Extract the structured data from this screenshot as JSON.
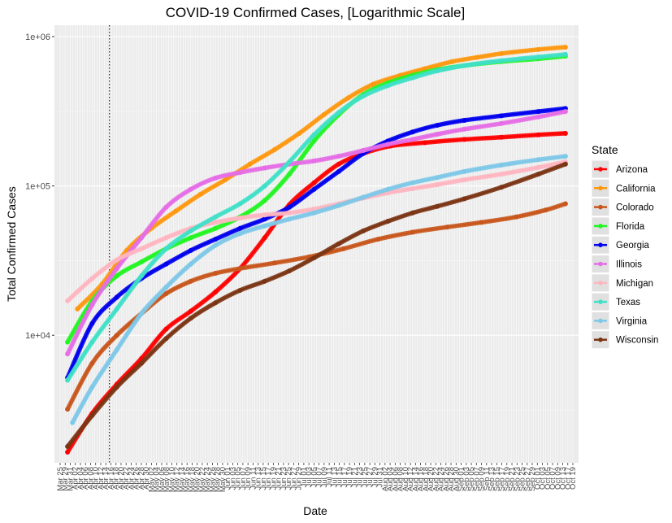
{
  "chart_data": {
    "type": "line",
    "title": "COVID-19 Confirmed Cases, [Logarithmic Scale]",
    "xlabel": "Date",
    "ylabel": "Total Confirmed Cases",
    "y_scale": "log10",
    "ylim": [
      1400,
      1000000
    ],
    "y_ticks": [
      10000,
      100000,
      1000000
    ],
    "y_tick_labels": [
      "1e+04",
      "1e+05",
      "1e+06"
    ],
    "x_start": "2020-03-25",
    "x_end": "2020-10-19",
    "x_tick_labels": [
      "Mar 25",
      "Mar 29",
      "Mar 31",
      "Apr 02",
      "Apr 04",
      "Apr 06",
      "Apr 08",
      "Apr 10",
      "Apr 12",
      "Apr 14",
      "Apr 16",
      "Apr 18",
      "Apr 20",
      "Apr 22",
      "Apr 24",
      "Apr 26",
      "Apr 28",
      "Apr 30",
      "May 02",
      "May 04",
      "May 06",
      "May 08",
      "May 10",
      "May 12",
      "May 14",
      "May 16",
      "May 18",
      "May 20",
      "May 22",
      "May 24",
      "May 26",
      "May 28",
      "May 30",
      "Jun 01",
      "Jun 03",
      "Jun 05",
      "Jun 07",
      "Jun 09",
      "Jun 11",
      "Jun 13",
      "Jun 15",
      "Jun 17",
      "Jun 19",
      "Jun 21",
      "Jun 23",
      "Jun 25",
      "Jun 27",
      "Jun 29",
      "Jul 01",
      "Jul 03",
      "Jul 05",
      "Jul 07",
      "Jul 09",
      "Jul 11",
      "Jul 13",
      "Jul 15",
      "Jul 17",
      "Jul 19",
      "Jul 21",
      "Jul 23",
      "Jul 25",
      "Jul 27",
      "Jul 29",
      "Jul 31",
      "Aug 02",
      "Aug 04",
      "Aug 06",
      "Aug 08",
      "Aug 10",
      "Aug 12",
      "Aug 14",
      "Aug 16",
      "Aug 18",
      "Aug 20",
      "Aug 22",
      "Aug 24",
      "Aug 26",
      "Aug 28",
      "Aug 30",
      "Sep 01",
      "Sep 03",
      "Sep 05",
      "Sep 07",
      "Sep 09",
      "Sep 11",
      "Sep 13",
      "Sep 15",
      "Sep 17",
      "Sep 19",
      "Sep 21",
      "Sep 23",
      "Sep 25",
      "Sep 27",
      "Sep 29",
      "Oct 01",
      "Oct 03",
      "Oct 05",
      "Oct 07",
      "Oct 09",
      "Oct 13",
      "Oct 17",
      "Oct 19"
    ],
    "vline_date": "2020-04-14",
    "grid": true,
    "legend_title": "State",
    "legend_position": "right",
    "series": [
      {
        "name": "Arizona",
        "color": "#FF0000",
        "points": [
          [
            "2020-03-28",
            1650
          ],
          [
            "2020-04-07",
            3000
          ],
          [
            "2020-04-17",
            4700
          ],
          [
            "2020-04-27",
            7000
          ],
          [
            "2020-05-07",
            11000
          ],
          [
            "2020-05-17",
            14500
          ],
          [
            "2020-05-27",
            19500
          ],
          [
            "2020-06-06",
            28000
          ],
          [
            "2020-06-16",
            45000
          ],
          [
            "2020-06-26",
            75000
          ],
          [
            "2020-07-06",
            105000
          ],
          [
            "2020-07-16",
            140000
          ],
          [
            "2020-07-26",
            165000
          ],
          [
            "2020-08-06",
            185000
          ],
          [
            "2020-08-20",
            195000
          ],
          [
            "2020-09-05",
            205000
          ],
          [
            "2020-09-20",
            212000
          ],
          [
            "2020-10-05",
            220000
          ],
          [
            "2020-10-16",
            225000
          ]
        ]
      },
      {
        "name": "California",
        "color": "#FF9810",
        "points": [
          [
            "2020-04-01",
            15000
          ],
          [
            "2020-04-11",
            22000
          ],
          [
            "2020-04-21",
            37000
          ],
          [
            "2020-05-01",
            52000
          ],
          [
            "2020-05-11",
            68000
          ],
          [
            "2020-05-21",
            88000
          ],
          [
            "2020-05-31",
            110000
          ],
          [
            "2020-06-10",
            140000
          ],
          [
            "2020-06-20",
            175000
          ],
          [
            "2020-06-30",
            225000
          ],
          [
            "2020-07-10",
            300000
          ],
          [
            "2020-07-20",
            390000
          ],
          [
            "2020-07-30",
            480000
          ],
          [
            "2020-08-10",
            550000
          ],
          [
            "2020-08-20",
            610000
          ],
          [
            "2020-08-31",
            680000
          ],
          [
            "2020-09-10",
            725000
          ],
          [
            "2020-09-20",
            770000
          ],
          [
            "2020-10-05",
            820000
          ],
          [
            "2020-10-16",
            850000
          ]
        ]
      },
      {
        "name": "Colorado",
        "color": "#C8561C",
        "points": [
          [
            "2020-03-28",
            3200
          ],
          [
            "2020-04-07",
            6500
          ],
          [
            "2020-04-17",
            10000
          ],
          [
            "2020-04-27",
            14000
          ],
          [
            "2020-05-07",
            19000
          ],
          [
            "2020-05-17",
            23000
          ],
          [
            "2020-05-27",
            26000
          ],
          [
            "2020-06-06",
            28000
          ],
          [
            "2020-06-20",
            30500
          ],
          [
            "2020-07-04",
            33500
          ],
          [
            "2020-07-18",
            38000
          ],
          [
            "2020-08-01",
            44000
          ],
          [
            "2020-08-15",
            49000
          ],
          [
            "2020-08-29",
            53000
          ],
          [
            "2020-09-12",
            57000
          ],
          [
            "2020-09-26",
            62000
          ],
          [
            "2020-10-08",
            69000
          ],
          [
            "2020-10-16",
            76000
          ]
        ]
      },
      {
        "name": "Florida",
        "color": "#22F522",
        "points": [
          [
            "2020-03-28",
            9000
          ],
          [
            "2020-04-07",
            17000
          ],
          [
            "2020-04-17",
            25000
          ],
          [
            "2020-04-27",
            31000
          ],
          [
            "2020-05-07",
            38000
          ],
          [
            "2020-05-17",
            45000
          ],
          [
            "2020-05-27",
            52000
          ],
          [
            "2020-06-06",
            62000
          ],
          [
            "2020-06-16",
            80000
          ],
          [
            "2020-06-26",
            120000
          ],
          [
            "2020-07-06",
            200000
          ],
          [
            "2020-07-16",
            300000
          ],
          [
            "2020-07-26",
            410000
          ],
          [
            "2020-08-05",
            490000
          ],
          [
            "2020-08-15",
            550000
          ],
          [
            "2020-08-25",
            600000
          ],
          [
            "2020-09-05",
            640000
          ],
          [
            "2020-09-20",
            680000
          ],
          [
            "2020-10-05",
            710000
          ],
          [
            "2020-10-16",
            740000
          ]
        ]
      },
      {
        "name": "Georgia",
        "color": "#0000EE",
        "points": [
          [
            "2020-03-28",
            5200
          ],
          [
            "2020-04-07",
            12000
          ],
          [
            "2020-04-17",
            18000
          ],
          [
            "2020-04-27",
            24000
          ],
          [
            "2020-05-07",
            30000
          ],
          [
            "2020-05-17",
            37000
          ],
          [
            "2020-05-27",
            44000
          ],
          [
            "2020-06-06",
            52000
          ],
          [
            "2020-06-16",
            60000
          ],
          [
            "2020-06-26",
            72000
          ],
          [
            "2020-07-06",
            95000
          ],
          [
            "2020-07-16",
            125000
          ],
          [
            "2020-07-26",
            165000
          ],
          [
            "2020-08-05",
            200000
          ],
          [
            "2020-08-15",
            230000
          ],
          [
            "2020-08-25",
            255000
          ],
          [
            "2020-09-05",
            275000
          ],
          [
            "2020-09-20",
            295000
          ],
          [
            "2020-10-05",
            315000
          ],
          [
            "2020-10-16",
            330000
          ]
        ]
      },
      {
        "name": "Illinois",
        "color": "#E66DE6",
        "points": [
          [
            "2020-03-28",
            7500
          ],
          [
            "2020-04-07",
            16000
          ],
          [
            "2020-04-17",
            28000
          ],
          [
            "2020-04-27",
            45000
          ],
          [
            "2020-05-07",
            72000
          ],
          [
            "2020-05-17",
            95000
          ],
          [
            "2020-05-27",
            113000
          ],
          [
            "2020-06-06",
            123000
          ],
          [
            "2020-06-16",
            132000
          ],
          [
            "2020-06-26",
            140000
          ],
          [
            "2020-07-06",
            147000
          ],
          [
            "2020-07-16",
            158000
          ],
          [
            "2020-07-26",
            173000
          ],
          [
            "2020-08-05",
            190000
          ],
          [
            "2020-08-15",
            205000
          ],
          [
            "2020-08-25",
            222000
          ],
          [
            "2020-09-05",
            240000
          ],
          [
            "2020-09-20",
            262000
          ],
          [
            "2020-10-05",
            290000
          ],
          [
            "2020-10-16",
            315000
          ]
        ]
      },
      {
        "name": "Michigan",
        "color": "#FFB6C1",
        "points": [
          [
            "2020-03-28",
            17000
          ],
          [
            "2020-04-07",
            24000
          ],
          [
            "2020-04-17",
            32000
          ],
          [
            "2020-04-27",
            38000
          ],
          [
            "2020-05-07",
            45000
          ],
          [
            "2020-05-17",
            52000
          ],
          [
            "2020-05-27",
            57000
          ],
          [
            "2020-06-06",
            61000
          ],
          [
            "2020-06-16",
            64000
          ],
          [
            "2020-06-26",
            66000
          ],
          [
            "2020-07-06",
            70000
          ],
          [
            "2020-07-16",
            76000
          ],
          [
            "2020-07-26",
            83000
          ],
          [
            "2020-08-05",
            90000
          ],
          [
            "2020-08-15",
            96000
          ],
          [
            "2020-08-25",
            102000
          ],
          [
            "2020-09-05",
            110000
          ],
          [
            "2020-09-20",
            120000
          ],
          [
            "2020-10-05",
            133000
          ],
          [
            "2020-10-16",
            145000
          ]
        ]
      },
      {
        "name": "Texas",
        "color": "#40E0C8",
        "points": [
          [
            "2020-03-28",
            5000
          ],
          [
            "2020-04-07",
            9000
          ],
          [
            "2020-04-17",
            15000
          ],
          [
            "2020-04-27",
            25000
          ],
          [
            "2020-05-07",
            38000
          ],
          [
            "2020-05-17",
            50000
          ],
          [
            "2020-05-27",
            62000
          ],
          [
            "2020-06-06",
            76000
          ],
          [
            "2020-06-16",
            100000
          ],
          [
            "2020-06-26",
            145000
          ],
          [
            "2020-07-06",
            220000
          ],
          [
            "2020-07-16",
            310000
          ],
          [
            "2020-07-26",
            400000
          ],
          [
            "2020-08-05",
            470000
          ],
          [
            "2020-08-15",
            530000
          ],
          [
            "2020-08-25",
            590000
          ],
          [
            "2020-09-05",
            640000
          ],
          [
            "2020-09-20",
            690000
          ],
          [
            "2020-10-05",
            730000
          ],
          [
            "2020-10-16",
            760000
          ]
        ]
      },
      {
        "name": "Virginia",
        "color": "#7EC8E8",
        "points": [
          [
            "2020-03-30",
            2600
          ],
          [
            "2020-04-07",
            4500
          ],
          [
            "2020-04-17",
            8000
          ],
          [
            "2020-04-27",
            14000
          ],
          [
            "2020-05-07",
            21000
          ],
          [
            "2020-05-17",
            30000
          ],
          [
            "2020-05-27",
            40000
          ],
          [
            "2020-06-06",
            48000
          ],
          [
            "2020-06-16",
            54000
          ],
          [
            "2020-06-26",
            60000
          ],
          [
            "2020-07-06",
            66000
          ],
          [
            "2020-07-16",
            74000
          ],
          [
            "2020-07-26",
            84000
          ],
          [
            "2020-08-05",
            95000
          ],
          [
            "2020-08-15",
            105000
          ],
          [
            "2020-08-25",
            114000
          ],
          [
            "2020-09-05",
            125000
          ],
          [
            "2020-09-20",
            138000
          ],
          [
            "2020-10-05",
            150000
          ],
          [
            "2020-10-16",
            158000
          ]
        ]
      },
      {
        "name": "Wisconsin",
        "color": "#7B3514",
        "points": [
          [
            "2020-03-28",
            1800
          ],
          [
            "2020-04-07",
            2900
          ],
          [
            "2020-04-17",
            4500
          ],
          [
            "2020-04-27",
            6500
          ],
          [
            "2020-05-07",
            9500
          ],
          [
            "2020-05-17",
            13000
          ],
          [
            "2020-05-27",
            16500
          ],
          [
            "2020-06-06",
            20000
          ],
          [
            "2020-06-16",
            23000
          ],
          [
            "2020-06-26",
            27000
          ],
          [
            "2020-07-06",
            33000
          ],
          [
            "2020-07-16",
            41000
          ],
          [
            "2020-07-26",
            50000
          ],
          [
            "2020-08-05",
            58000
          ],
          [
            "2020-08-15",
            66000
          ],
          [
            "2020-08-25",
            73000
          ],
          [
            "2020-09-05",
            82000
          ],
          [
            "2020-09-20",
            98000
          ],
          [
            "2020-10-05",
            120000
          ],
          [
            "2020-10-16",
            140000
          ]
        ]
      }
    ]
  }
}
